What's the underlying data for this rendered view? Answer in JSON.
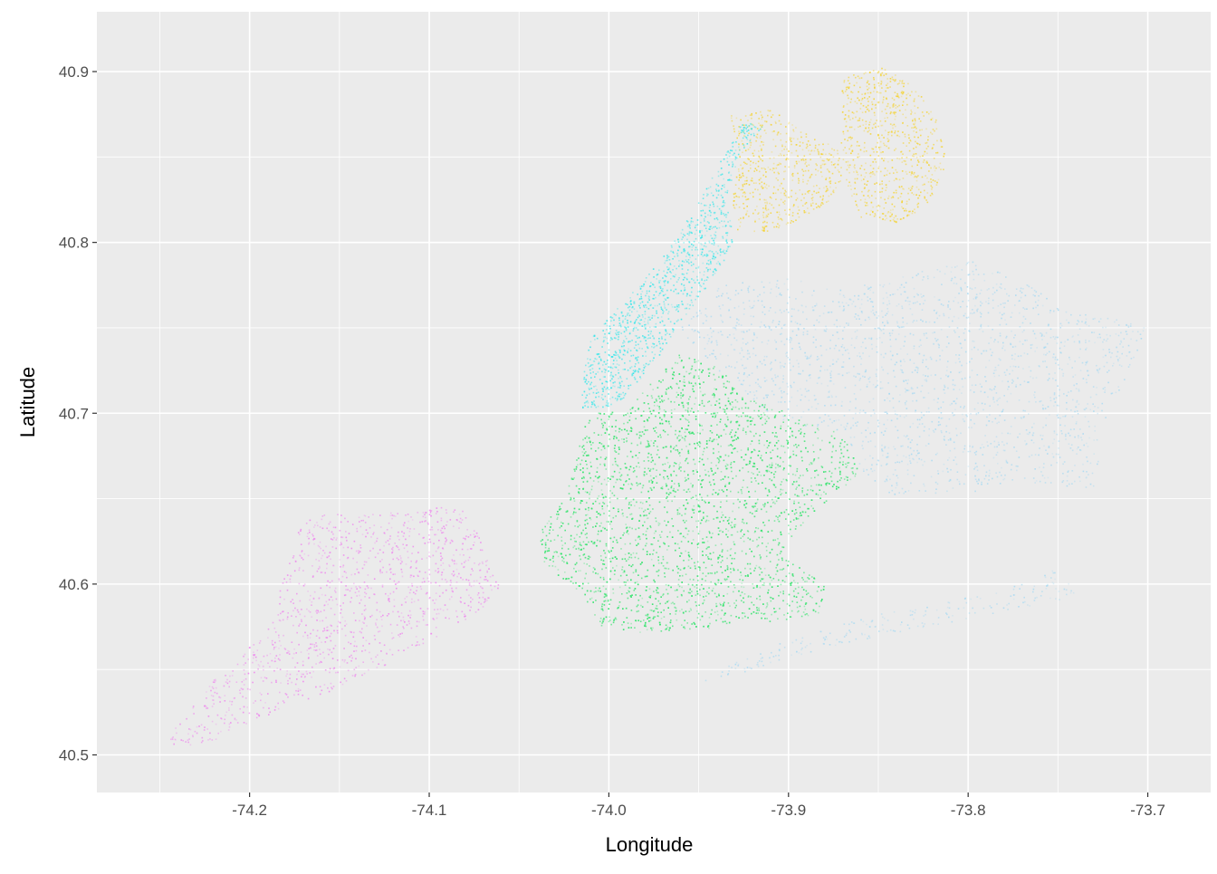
{
  "chart_data": {
    "type": "scatter",
    "title": "",
    "xlabel": "Longitude",
    "ylabel": "Latitude",
    "xlim": [
      -74.285,
      -73.665
    ],
    "ylim": [
      40.478,
      40.935
    ],
    "x_ticks": [
      -74.2,
      -74.1,
      -74.0,
      -73.9,
      -73.8,
      -73.7
    ],
    "x_tick_labels": [
      "-74.2",
      "-74.1",
      "-74.0",
      "-73.9",
      "-73.8",
      "-73.7"
    ],
    "y_ticks": [
      40.5,
      40.6,
      40.7,
      40.8,
      40.9
    ],
    "y_tick_labels": [
      "40.5",
      "40.6",
      "40.7",
      "40.8",
      "40.9"
    ],
    "grid": true,
    "legend": "none",
    "background_color": "#ebebeb",
    "series": [
      {
        "color": "#f5d22a",
        "density": 1.0,
        "regions": [
          {
            "points": [
              [
                -73.933,
                40.876
              ],
              [
                -73.91,
                40.878
              ],
              [
                -73.892,
                40.867
              ],
              [
                -73.873,
                40.855
              ],
              [
                -73.868,
                40.838
              ],
              [
                -73.88,
                40.822
              ],
              [
                -73.905,
                40.808
              ],
              [
                -73.928,
                40.805
              ],
              [
                -73.932,
                40.822
              ],
              [
                -73.928,
                40.85
              ]
            ]
          },
          {
            "points": [
              [
                -73.87,
                40.897
              ],
              [
                -73.848,
                40.903
              ],
              [
                -73.828,
                40.89
              ],
              [
                -73.818,
                40.872
              ],
              [
                -73.812,
                40.845
              ],
              [
                -73.822,
                40.82
              ],
              [
                -73.84,
                40.812
              ],
              [
                -73.86,
                40.815
              ],
              [
                -73.87,
                40.84
              ],
              [
                -73.872,
                40.87
              ]
            ]
          }
        ]
      },
      {
        "color": "#2ee6ea",
        "density": 1.4,
        "regions": [
          {
            "points": [
              [
                -74.015,
                40.703
              ],
              [
                -74.005,
                40.702
              ],
              [
                -73.992,
                40.709
              ],
              [
                -73.973,
                40.733
              ],
              [
                -73.962,
                40.752
              ],
              [
                -73.945,
                40.775
              ],
              [
                -73.93,
                40.8
              ],
              [
                -73.935,
                40.825
              ],
              [
                -73.928,
                40.852
              ],
              [
                -73.915,
                40.868
              ],
              [
                -73.926,
                40.872
              ],
              [
                -73.948,
                40.828
              ],
              [
                -73.965,
                40.8
              ],
              [
                -73.99,
                40.768
              ],
              [
                -74.01,
                40.745
              ],
              [
                -74.016,
                40.718
              ]
            ]
          }
        ]
      },
      {
        "color": "#a6d9f2",
        "density": 0.5,
        "regions": [
          {
            "points": [
              [
                -73.962,
                40.748
              ],
              [
                -73.94,
                40.775
              ],
              [
                -73.905,
                40.78
              ],
              [
                -73.87,
                40.773
              ],
              [
                -73.84,
                40.78
              ],
              [
                -73.8,
                40.79
              ],
              [
                -73.765,
                40.775
              ],
              [
                -73.745,
                40.76
              ],
              [
                -73.7,
                40.752
              ],
              [
                -73.712,
                40.722
              ],
              [
                -73.727,
                40.688
              ],
              [
                -73.728,
                40.655
              ],
              [
                -73.765,
                40.66
              ],
              [
                -73.79,
                40.655
              ],
              [
                -73.845,
                40.652
              ],
              [
                -73.86,
                40.668
              ],
              [
                -73.87,
                40.69
              ],
              [
                -73.905,
                40.695
              ],
              [
                -73.94,
                40.725
              ]
            ]
          },
          {
            "points": [
              [
                -73.95,
                40.545
              ],
              [
                -73.905,
                40.566
              ],
              [
                -73.85,
                40.583
              ],
              [
                -73.79,
                40.595
              ],
              [
                -73.755,
                40.609
              ],
              [
                -73.74,
                40.6
              ],
              [
                -73.742,
                40.592
              ],
              [
                -73.79,
                40.582
              ],
              [
                -73.85,
                40.57
              ],
              [
                -73.905,
                40.556
              ],
              [
                -73.948,
                40.54
              ]
            ]
          }
        ]
      },
      {
        "color": "#35e46e",
        "density": 1.2,
        "regions": [
          {
            "points": [
              [
                -74.01,
                40.7
              ],
              [
                -73.99,
                40.703
              ],
              [
                -73.962,
                40.735
              ],
              [
                -73.94,
                40.728
              ],
              [
                -73.925,
                40.712
              ],
              [
                -73.9,
                40.7
              ],
              [
                -73.87,
                40.688
              ],
              [
                -73.86,
                40.665
              ],
              [
                -73.878,
                40.65
              ],
              [
                -73.895,
                40.633
              ],
              [
                -73.905,
                40.618
              ],
              [
                -73.88,
                40.6
              ],
              [
                -73.882,
                40.582
              ],
              [
                -73.935,
                40.575
              ],
              [
                -73.985,
                40.572
              ],
              [
                -74.005,
                40.575
              ],
              [
                -74.015,
                40.595
              ],
              [
                -74.035,
                40.608
              ],
              [
                -74.04,
                40.63
              ],
              [
                -74.025,
                40.65
              ],
              [
                -74.018,
                40.675
              ],
              [
                -74.015,
                40.69
              ]
            ]
          }
        ]
      },
      {
        "color": "#ee82ee",
        "density": 0.6,
        "regions": [
          {
            "points": [
              [
                -74.25,
                40.505
              ],
              [
                -74.24,
                40.52
              ],
              [
                -74.22,
                40.545
              ],
              [
                -74.19,
                40.575
              ],
              [
                -74.18,
                40.61
              ],
              [
                -74.17,
                40.64
              ],
              [
                -74.14,
                40.642
              ],
              [
                -74.11,
                40.642
              ],
              [
                -74.085,
                40.648
              ],
              [
                -74.07,
                40.625
              ],
              [
                -74.06,
                40.6
              ],
              [
                -74.07,
                40.585
              ],
              [
                -74.095,
                40.57
              ],
              [
                -74.13,
                40.55
              ],
              [
                -74.16,
                40.535
              ],
              [
                -74.2,
                40.52
              ],
              [
                -74.225,
                40.505
              ]
            ]
          }
        ]
      }
    ]
  }
}
